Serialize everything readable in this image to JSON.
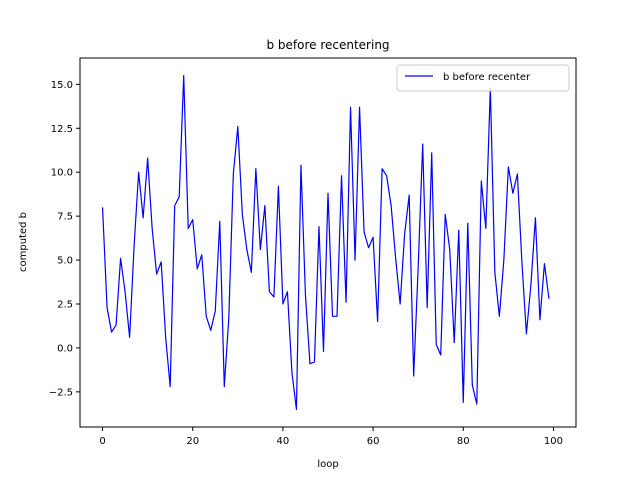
{
  "chart_data": {
    "type": "line",
    "title": "b before recentering",
    "xlabel": "loop",
    "ylabel": "computed b",
    "xlim": [
      -5,
      105
    ],
    "ylim": [
      -4.5,
      16.5
    ],
    "xticks": [
      0,
      20,
      40,
      60,
      80,
      100
    ],
    "xtick_labels": [
      "0",
      "20",
      "40",
      "60",
      "80",
      "100"
    ],
    "yticks": [
      -2.5,
      0.0,
      2.5,
      5.0,
      7.5,
      10.0,
      12.5,
      15.0
    ],
    "ytick_labels": [
      "−2.5",
      "0.0",
      "2.5",
      "5.0",
      "7.5",
      "10.0",
      "12.5",
      "15.0"
    ],
    "grid": false,
    "legend_position": "top-right",
    "series": [
      {
        "name": "b before recenter",
        "color": "#0000ff",
        "x": [
          0,
          1,
          2,
          3,
          4,
          5,
          6,
          7,
          8,
          9,
          10,
          11,
          12,
          13,
          14,
          15,
          16,
          17,
          18,
          19,
          20,
          21,
          22,
          23,
          24,
          25,
          26,
          27,
          28,
          29,
          30,
          31,
          32,
          33,
          34,
          35,
          36,
          37,
          38,
          39,
          40,
          41,
          42,
          43,
          44,
          45,
          46,
          47,
          48,
          49,
          50,
          51,
          52,
          53,
          54,
          55,
          56,
          57,
          58,
          59,
          60,
          61,
          62,
          63,
          64,
          65,
          66,
          67,
          68,
          69,
          70,
          71,
          72,
          73,
          74,
          75,
          76,
          77,
          78,
          79,
          80,
          81,
          82,
          83,
          84,
          85,
          86,
          87,
          88,
          89,
          90,
          91,
          92,
          93,
          94,
          95,
          96,
          97,
          98,
          99
        ],
        "y": [
          8.0,
          2.3,
          0.9,
          1.3,
          5.1,
          3.2,
          0.6,
          5.8,
          10.0,
          7.4,
          10.8,
          6.8,
          4.2,
          4.9,
          0.6,
          -2.2,
          8.1,
          8.6,
          15.5,
          6.8,
          7.3,
          4.5,
          5.3,
          1.8,
          1.0,
          2.1,
          7.2,
          -2.2,
          1.7,
          9.9,
          12.6,
          7.6,
          5.6,
          4.3,
          10.2,
          5.6,
          8.1,
          3.2,
          2.9,
          9.2,
          2.5,
          3.2,
          -1.4,
          -3.5,
          10.4,
          3.0,
          -0.9,
          -0.8,
          6.9,
          -0.2,
          8.8,
          1.8,
          1.8,
          9.8,
          2.6,
          13.7,
          5.0,
          13.7,
          6.6,
          5.7,
          6.3,
          1.5,
          10.2,
          9.8,
          8.1,
          5.1,
          2.5,
          6.5,
          8.7,
          -1.6,
          4.6,
          11.6,
          2.3,
          11.1,
          0.2,
          -0.4,
          7.6,
          5.6,
          0.3,
          6.7,
          -3.1,
          7.1,
          -2.1,
          -3.2,
          9.5,
          6.8,
          14.8,
          4.3,
          1.8,
          5.0,
          10.3,
          8.8,
          9.9,
          4.9,
          0.8,
          3.6,
          7.4,
          1.6,
          4.8,
          2.8
        ]
      }
    ]
  }
}
